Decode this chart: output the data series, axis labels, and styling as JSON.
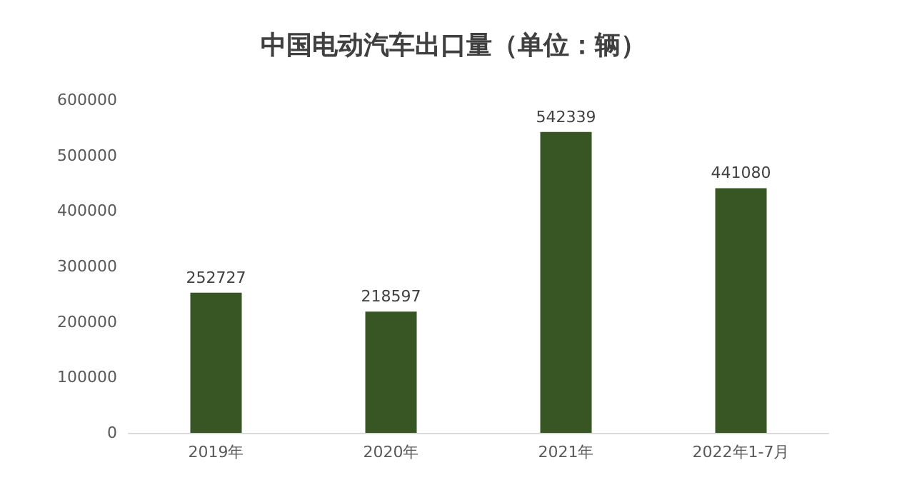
{
  "chart_data": {
    "type": "bar",
    "title": "中国电动汽车出口量（单位：辆）",
    "categories": [
      "2019年",
      "2020年",
      "2021年",
      "2022年1-7月"
    ],
    "values": [
      252727,
      218597,
      542339,
      441080
    ],
    "color": "#375623",
    "ylim": [
      0,
      600000
    ],
    "yticks": [
      0,
      100000,
      200000,
      300000,
      400000,
      500000,
      600000
    ],
    "grid": false,
    "data_labels": true
  }
}
